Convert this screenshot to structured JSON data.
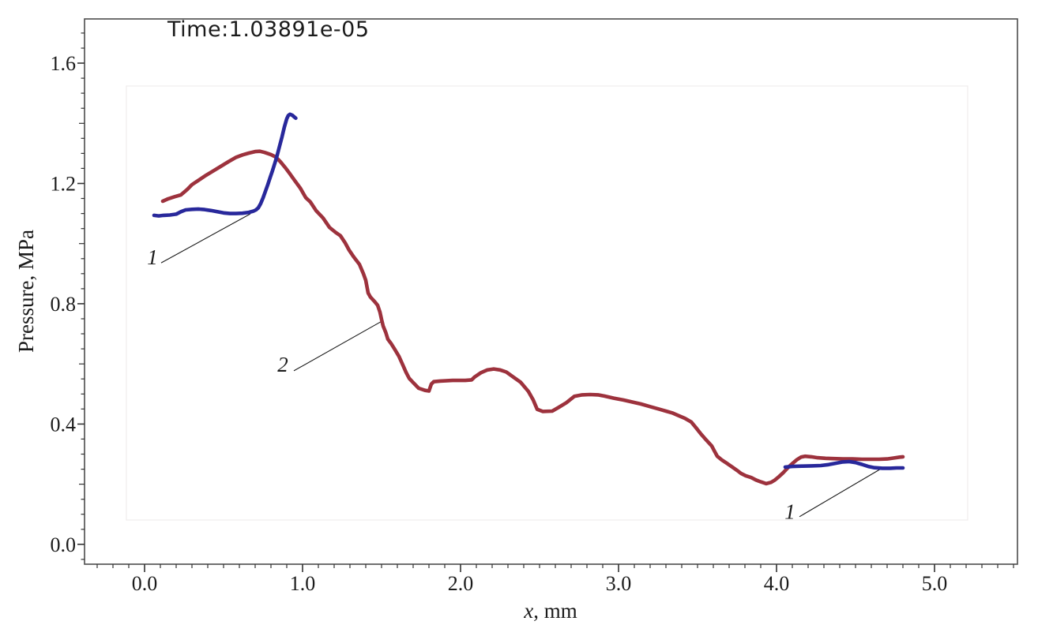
{
  "title": "Time:1.03891e-05",
  "axes": {
    "xlabel_italic": "x",
    "xlabel_rest": ", mm",
    "ylabel": "Pressure, MPa",
    "x_major_values": [
      0.0,
      1.0,
      2.0,
      3.0,
      4.0,
      5.0
    ],
    "x_tick_labels": [
      "0.0",
      "1.0",
      "2.0",
      "3.0",
      "4.0",
      "5.0"
    ],
    "y_major_values": [
      0.0,
      0.4,
      0.8,
      1.2,
      1.6
    ],
    "y_tick_labels": [
      "0.0",
      "0.4",
      "0.8",
      "1.2",
      "1.6"
    ],
    "x_minor_step": 0.1,
    "y_minor_step": 0.05
  },
  "colors": {
    "curve1_blue": "#28289b",
    "curve2_red": "#9d323d",
    "frame": "#4d4d4d",
    "tick": "#333333",
    "text": "#1b1b1b",
    "leader_line": "#1a1a1a",
    "inner_box_border": "#f0eded",
    "background": "#ffffff"
  },
  "chart_data": {
    "type": "line",
    "title": "Time:1.03891e-05",
    "xlabel": "x, mm",
    "ylabel": "Pressure, MPa",
    "xlim": [
      -0.38,
      5.525
    ],
    "ylim": [
      -0.066,
      1.747
    ],
    "grid": false,
    "legend": "none",
    "inner_box": {
      "x0": -0.115,
      "x1": 5.21,
      "y0": 0.081,
      "y1": 1.524
    },
    "series": [
      {
        "id": "curve-2",
        "label": "2",
        "color": "#9d323d",
        "points": [
          [
            0.115,
            1.141
          ],
          [
            0.15,
            1.149
          ],
          [
            0.19,
            1.156
          ],
          [
            0.23,
            1.162
          ],
          [
            0.27,
            1.18
          ],
          [
            0.3,
            1.196
          ],
          [
            0.34,
            1.21
          ],
          [
            0.385,
            1.226
          ],
          [
            0.43,
            1.24
          ],
          [
            0.48,
            1.256
          ],
          [
            0.53,
            1.272
          ],
          [
            0.58,
            1.287
          ],
          [
            0.62,
            1.295
          ],
          [
            0.66,
            1.301
          ],
          [
            0.7,
            1.306
          ],
          [
            0.73,
            1.307
          ],
          [
            0.76,
            1.303
          ],
          [
            0.8,
            1.296
          ],
          [
            0.83,
            1.288
          ],
          [
            0.86,
            1.272
          ],
          [
            0.89,
            1.253
          ],
          [
            0.92,
            1.232
          ],
          [
            0.95,
            1.21
          ],
          [
            0.985,
            1.185
          ],
          [
            1.02,
            1.153
          ],
          [
            1.05,
            1.138
          ],
          [
            1.085,
            1.11
          ],
          [
            1.13,
            1.085
          ],
          [
            1.17,
            1.054
          ],
          [
            1.21,
            1.037
          ],
          [
            1.24,
            1.026
          ],
          [
            1.27,
            1.002
          ],
          [
            1.295,
            0.978
          ],
          [
            1.325,
            0.955
          ],
          [
            1.36,
            0.931
          ],
          [
            1.385,
            0.9
          ],
          [
            1.4,
            0.878
          ],
          [
            1.415,
            0.836
          ],
          [
            1.43,
            0.822
          ],
          [
            1.455,
            0.808
          ],
          [
            1.475,
            0.795
          ],
          [
            1.49,
            0.772
          ],
          [
            1.5,
            0.748
          ],
          [
            1.51,
            0.726
          ],
          [
            1.527,
            0.704
          ],
          [
            1.54,
            0.682
          ],
          [
            1.56,
            0.668
          ],
          [
            1.585,
            0.647
          ],
          [
            1.61,
            0.625
          ],
          [
            1.635,
            0.596
          ],
          [
            1.655,
            0.572
          ],
          [
            1.675,
            0.552
          ],
          [
            1.7,
            0.538
          ],
          [
            1.735,
            0.519
          ],
          [
            1.775,
            0.512
          ],
          [
            1.8,
            0.51
          ],
          [
            1.815,
            0.533
          ],
          [
            1.83,
            0.541
          ],
          [
            1.87,
            0.543
          ],
          [
            1.95,
            0.545
          ],
          [
            2.03,
            0.545
          ],
          [
            2.07,
            0.547
          ],
          [
            2.09,
            0.557
          ],
          [
            2.13,
            0.571
          ],
          [
            2.17,
            0.58
          ],
          [
            2.21,
            0.583
          ],
          [
            2.25,
            0.58
          ],
          [
            2.29,
            0.573
          ],
          [
            2.33,
            0.558
          ],
          [
            2.38,
            0.539
          ],
          [
            2.43,
            0.508
          ],
          [
            2.46,
            0.48
          ],
          [
            2.485,
            0.449
          ],
          [
            2.52,
            0.442
          ],
          [
            2.58,
            0.443
          ],
          [
            2.62,
            0.455
          ],
          [
            2.67,
            0.471
          ],
          [
            2.72,
            0.492
          ],
          [
            2.77,
            0.497
          ],
          [
            2.82,
            0.498
          ],
          [
            2.87,
            0.497
          ],
          [
            2.91,
            0.493
          ],
          [
            2.97,
            0.486
          ],
          [
            3.03,
            0.48
          ],
          [
            3.09,
            0.473
          ],
          [
            3.14,
            0.467
          ],
          [
            3.2,
            0.458
          ],
          [
            3.26,
            0.449
          ],
          [
            3.3,
            0.443
          ],
          [
            3.34,
            0.437
          ],
          [
            3.38,
            0.428
          ],
          [
            3.42,
            0.419
          ],
          [
            3.46,
            0.407
          ],
          [
            3.49,
            0.388
          ],
          [
            3.52,
            0.368
          ],
          [
            3.555,
            0.347
          ],
          [
            3.59,
            0.327
          ],
          [
            3.61,
            0.307
          ],
          [
            3.625,
            0.293
          ],
          [
            3.655,
            0.28
          ],
          [
            3.69,
            0.268
          ],
          [
            3.72,
            0.257
          ],
          [
            3.75,
            0.246
          ],
          [
            3.775,
            0.236
          ],
          [
            3.805,
            0.228
          ],
          [
            3.84,
            0.222
          ],
          [
            3.87,
            0.214
          ],
          [
            3.9,
            0.208
          ],
          [
            3.935,
            0.202
          ],
          [
            3.965,
            0.206
          ],
          [
            3.99,
            0.214
          ],
          [
            4.015,
            0.225
          ],
          [
            4.04,
            0.237
          ],
          [
            4.06,
            0.248
          ],
          [
            4.08,
            0.259
          ],
          [
            4.105,
            0.271
          ],
          [
            4.13,
            0.282
          ],
          [
            4.155,
            0.29
          ],
          [
            4.18,
            0.293
          ],
          [
            4.22,
            0.291
          ],
          [
            4.26,
            0.288
          ],
          [
            4.31,
            0.286
          ],
          [
            4.36,
            0.285
          ],
          [
            4.42,
            0.284
          ],
          [
            4.48,
            0.284
          ],
          [
            4.54,
            0.283
          ],
          [
            4.6,
            0.283
          ],
          [
            4.65,
            0.283
          ],
          [
            4.7,
            0.284
          ],
          [
            4.74,
            0.287
          ],
          [
            4.78,
            0.29
          ],
          [
            4.8,
            0.291
          ]
        ]
      },
      {
        "id": "curve-1-left",
        "label": "1",
        "color": "#28289b",
        "points": [
          [
            0.06,
            1.094
          ],
          [
            0.09,
            1.092
          ],
          [
            0.12,
            1.094
          ],
          [
            0.16,
            1.095
          ],
          [
            0.2,
            1.098
          ],
          [
            0.23,
            1.106
          ],
          [
            0.26,
            1.112
          ],
          [
            0.3,
            1.114
          ],
          [
            0.34,
            1.115
          ],
          [
            0.38,
            1.113
          ],
          [
            0.42,
            1.11
          ],
          [
            0.46,
            1.106
          ],
          [
            0.5,
            1.102
          ],
          [
            0.54,
            1.1
          ],
          [
            0.58,
            1.1
          ],
          [
            0.62,
            1.101
          ],
          [
            0.66,
            1.104
          ],
          [
            0.69,
            1.108
          ],
          [
            0.705,
            1.112
          ],
          [
            0.72,
            1.119
          ],
          [
            0.735,
            1.133
          ],
          [
            0.75,
            1.152
          ],
          [
            0.765,
            1.174
          ],
          [
            0.78,
            1.196
          ],
          [
            0.795,
            1.22
          ],
          [
            0.81,
            1.243
          ],
          [
            0.825,
            1.268
          ],
          [
            0.84,
            1.295
          ],
          [
            0.855,
            1.325
          ],
          [
            0.87,
            1.355
          ],
          [
            0.885,
            1.388
          ],
          [
            0.9,
            1.415
          ],
          [
            0.91,
            1.426
          ],
          [
            0.92,
            1.43
          ],
          [
            0.935,
            1.427
          ],
          [
            0.95,
            1.42
          ],
          [
            0.957,
            1.417
          ]
        ]
      },
      {
        "id": "curve-1-right",
        "label": "1",
        "color": "#28289b",
        "points": [
          [
            4.055,
            0.257
          ],
          [
            4.1,
            0.259
          ],
          [
            4.16,
            0.26
          ],
          [
            4.22,
            0.261
          ],
          [
            4.28,
            0.262
          ],
          [
            4.33,
            0.265
          ],
          [
            4.38,
            0.27
          ],
          [
            4.42,
            0.274
          ],
          [
            4.46,
            0.275
          ],
          [
            4.5,
            0.272
          ],
          [
            4.54,
            0.266
          ],
          [
            4.58,
            0.259
          ],
          [
            4.62,
            0.255
          ],
          [
            4.67,
            0.253
          ],
          [
            4.72,
            0.253
          ],
          [
            4.76,
            0.254
          ],
          [
            4.8,
            0.254
          ]
        ]
      }
    ],
    "annotations": [
      {
        "label": "1",
        "label_pos": [
          0.05,
          0.955
        ],
        "line": [
          [
            0.105,
            0.936
          ],
          [
            0.67,
            1.099
          ]
        ]
      },
      {
        "label": "2",
        "label_pos": [
          0.875,
          0.598
        ],
        "line": [
          [
            0.945,
            0.577
          ],
          [
            1.495,
            0.74
          ]
        ]
      },
      {
        "label": "1",
        "label_pos": [
          4.085,
          0.108
        ],
        "line": [
          [
            4.145,
            0.092
          ],
          [
            4.67,
            0.254
          ]
        ]
      }
    ]
  }
}
